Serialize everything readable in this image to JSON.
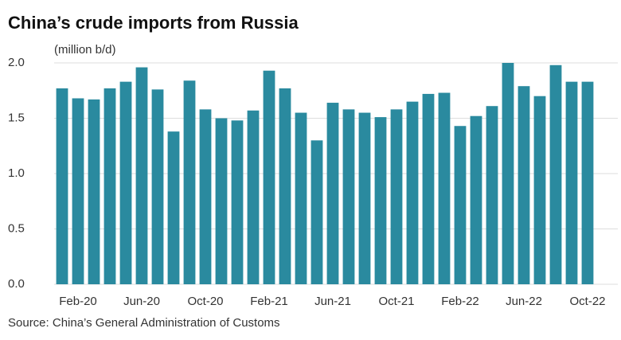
{
  "chart_data": {
    "type": "bar",
    "title": "China’s crude imports from Russia",
    "subtitle": "(million b/d)",
    "source": "Source: China’s General Administration of Customs",
    "categories": [
      null,
      "Feb-20",
      null,
      null,
      null,
      "Jun-20",
      null,
      null,
      null,
      "Oct-20",
      null,
      null,
      null,
      "Feb-21",
      null,
      null,
      null,
      "Jun-21",
      null,
      null,
      null,
      "Oct-21",
      null,
      null,
      null,
      "Feb-22",
      null,
      null,
      null,
      "Jun-22",
      null,
      null,
      null,
      "Oct-22"
    ],
    "values": [
      1.77,
      1.68,
      1.67,
      1.77,
      1.83,
      1.96,
      1.76,
      1.38,
      1.84,
      1.58,
      1.5,
      1.48,
      1.57,
      1.93,
      1.77,
      1.55,
      1.3,
      1.64,
      1.58,
      1.55,
      1.51,
      1.58,
      1.65,
      1.72,
      1.73,
      1.43,
      1.52,
      1.61,
      2.0,
      1.79,
      1.7,
      1.98,
      1.83,
      1.83
    ],
    "color": "#2a8a9f",
    "ylim": [
      0,
      2.0
    ],
    "yticks": [
      {
        "value": 0,
        "label": "0.0"
      },
      {
        "value": 0.5,
        "label": "0.5"
      },
      {
        "value": 1,
        "label": "1.0"
      },
      {
        "value": 1.5,
        "label": "1.5"
      },
      {
        "value": 2,
        "label": "2.0"
      }
    ],
    "grid": true
  }
}
